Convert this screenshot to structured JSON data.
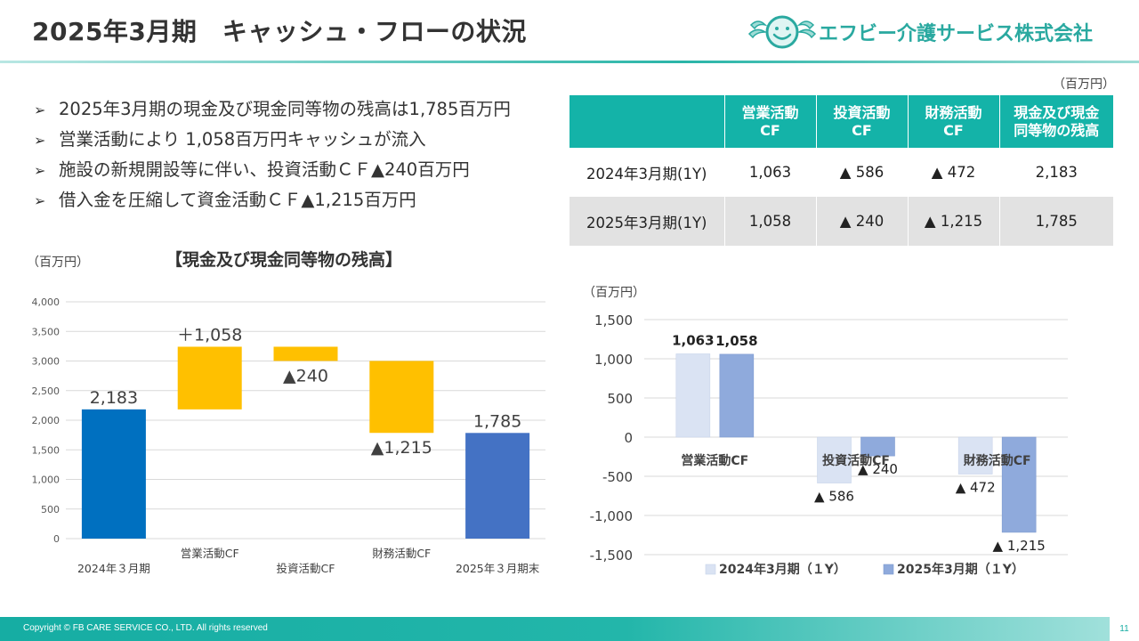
{
  "header": {
    "title": "2025年3月期　キャッシュ・フローの状況",
    "company": "エフビー介護サービス株式会社"
  },
  "bullets": [
    "2025年3月期の現金及び現金同等物の残高は1,785百万円",
    "営業活動により 1,058百万円キャッシュが流入",
    "施設の新規開設等に伴い、投資活動ＣＦ▲240百万円",
    "借入金を圧縮して資金活動ＣＦ▲1,215百万円"
  ],
  "bullet_marker": "➢",
  "table": {
    "unit": "（百万円）",
    "headers": [
      "",
      "営業活動\nCF",
      "投資活動\nCF",
      "財務活動\nCF",
      "現金及び現金\n同等物の残高"
    ],
    "rows": [
      [
        "2024年3月期(1Y)",
        "1,063",
        "▲ 586",
        "▲ 472",
        "2,183"
      ],
      [
        "2025年3月期(1Y)",
        "1,058",
        "▲ 240",
        "▲ 1,215",
        "1,785"
      ]
    ]
  },
  "waterfall": {
    "unit": "（百万円）",
    "title": "【現金及び現金同等物の残高】"
  },
  "bar_chart": {
    "unit": "（百万円）"
  },
  "footer": {
    "copyright": "Copyright © FB CARE SERVICE CO., LTD. All rights reserved",
    "page": "11"
  },
  "colors": {
    "teal": "#14b3a8",
    "waterfall_start": "#0070c0",
    "waterfall_end": "#4472c4",
    "waterfall_delta": "#ffc000",
    "series_2024": "#dae3f3",
    "series_2025": "#8faadc"
  },
  "chart_data": [
    {
      "type": "bar",
      "subtype": "waterfall",
      "title": "【現金及び現金同等物の残高】",
      "unit": "（百万円）",
      "categories": [
        "2024年３月期",
        "営業活動CF",
        "投資活動CF",
        "財務活動CF",
        "2025年３月期末"
      ],
      "values": [
        2183,
        1058,
        -240,
        -1215,
        1785
      ],
      "kinds": [
        "total",
        "delta",
        "delta",
        "delta",
        "total"
      ],
      "data_labels": [
        "2,183",
        "＋1,058",
        "▲240",
        "▲1,215",
        "1,785"
      ],
      "ylim": [
        0,
        4000
      ],
      "yticks": [
        0,
        500,
        1000,
        1500,
        2000,
        2500,
        3000,
        3500,
        4000
      ],
      "ytick_labels": [
        "0",
        "500",
        "1,000",
        "1,500",
        "2,000",
        "2,500",
        "3,000",
        "3,500",
        "4,000"
      ],
      "grid": true
    },
    {
      "type": "bar",
      "unit": "（百万円）",
      "categories": [
        "営業活動CF",
        "投資活動CF",
        "財務活動CF"
      ],
      "series": [
        {
          "name": "2024年3月期（１Y）",
          "values": [
            1063,
            -586,
            -472
          ],
          "labels": [
            "1,063",
            "▲ 586",
            "▲ 472"
          ]
        },
        {
          "name": "2025年3月期（１Y）",
          "values": [
            1058,
            -240,
            -1215
          ],
          "labels": [
            "1,058",
            "▲ 240",
            "▲ 1,215"
          ]
        }
      ],
      "ylim": [
        -1500,
        1500
      ],
      "yticks": [
        -1500,
        -1000,
        -500,
        0,
        500,
        1000,
        1500
      ],
      "ytick_labels": [
        "-1,500",
        "-1,000",
        "-500",
        "0",
        "500",
        "1,000",
        "1,500"
      ],
      "grid": true,
      "legend": "bottom"
    }
  ]
}
